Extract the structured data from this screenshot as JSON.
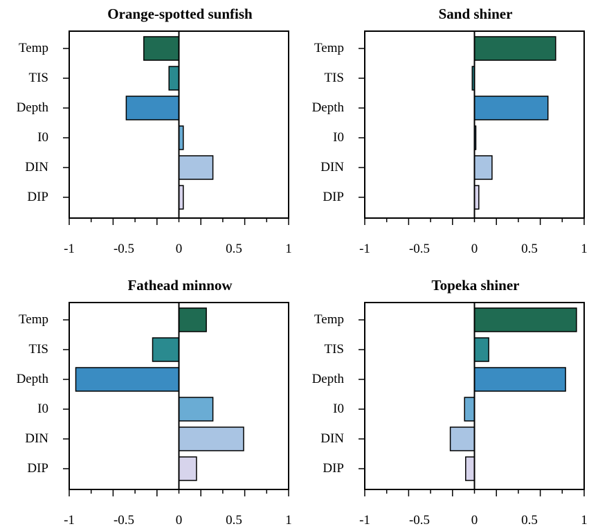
{
  "chart_data": [
    {
      "type": "bar",
      "orientation": "horizontal",
      "title": "Orange-spotted sunfish",
      "categories": [
        "Temp",
        "TIS",
        "Depth",
        "I0",
        "DIN",
        "DIP"
      ],
      "values": [
        -0.32,
        -0.09,
        -0.48,
        0.04,
        0.31,
        0.04
      ],
      "xlim": [
        -1,
        1
      ],
      "xticks": [
        "-1",
        "-0.5",
        "0",
        "0.5",
        "1"
      ]
    },
    {
      "type": "bar",
      "orientation": "horizontal",
      "title": "Sand shiner",
      "categories": [
        "Temp",
        "TIS",
        "Depth",
        "I0",
        "DIN",
        "DIP"
      ],
      "values": [
        0.74,
        -0.02,
        0.67,
        0.0,
        0.16,
        0.04
      ],
      "xlim": [
        -1,
        1
      ],
      "xticks": [
        "-1",
        "-0.5",
        "0",
        "0.5",
        "1"
      ]
    },
    {
      "type": "bar",
      "orientation": "horizontal",
      "title": "Fathead minnow",
      "categories": [
        "Temp",
        "TIS",
        "Depth",
        "I0",
        "DIN",
        "DIP"
      ],
      "values": [
        0.25,
        -0.24,
        -0.94,
        0.31,
        0.59,
        0.16
      ],
      "xlim": [
        -1,
        1
      ],
      "xticks": [
        "-1",
        "-0.5",
        "0",
        "0.5",
        "1"
      ]
    },
    {
      "type": "bar",
      "orientation": "horizontal",
      "title": "Topeka shiner",
      "categories": [
        "Temp",
        "TIS",
        "Depth",
        "I0",
        "DIN",
        "DIP"
      ],
      "values": [
        0.93,
        0.13,
        0.83,
        -0.09,
        -0.22,
        -0.08
      ],
      "xlim": [
        -1,
        1
      ],
      "xticks": [
        "-1",
        "-0.5",
        "0",
        "0.5",
        "1"
      ]
    }
  ],
  "bar_colors": {
    "Temp": "#1f6b52",
    "TIS": "#2a8a8f",
    "Depth": "#3a8cc2",
    "I0": "#6aacd4",
    "DIN": "#a9c4e3",
    "DIP": "#d7d4ec"
  }
}
